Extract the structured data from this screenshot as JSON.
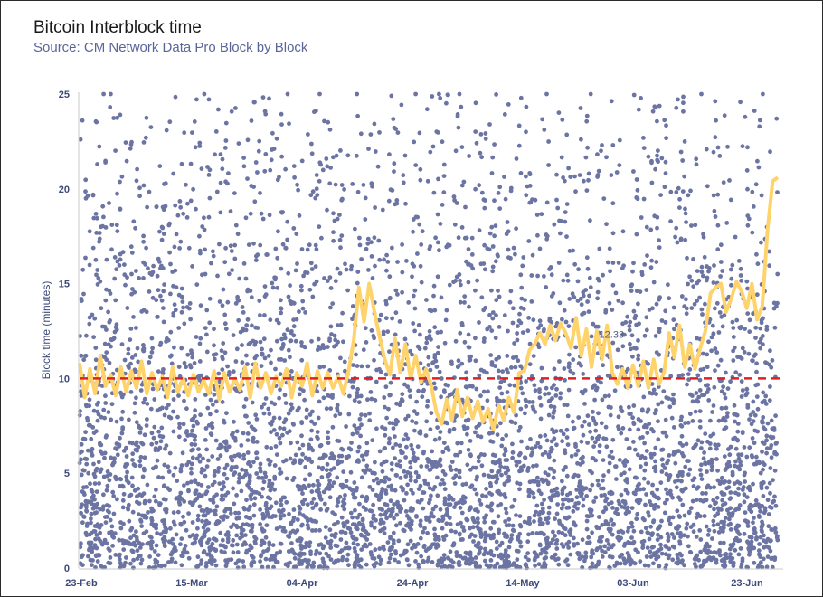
{
  "chart_data": {
    "type": "scatter",
    "title": "Bitcoin Interblock time",
    "subtitle": "Source:  CM Network Data Pro Block by Block",
    "xlabel": "",
    "ylabel": "Block time (minutes)",
    "ylim": [
      0,
      25
    ],
    "yticks": [
      0,
      5,
      10,
      15,
      20,
      25
    ],
    "xticks": [
      "23-Feb",
      "15-Mar",
      "04-Apr",
      "24-Apr",
      "14-May",
      "03-Jun",
      "23-Jun"
    ],
    "x_range_days": [
      0,
      125
    ],
    "grid": false,
    "reference_line": {
      "value": 10,
      "style": "dashed",
      "color": "#e02020"
    },
    "annotation": {
      "text": "12.33",
      "day": 94,
      "value": 12.33
    },
    "colors": {
      "scatter": "#6b74a2",
      "rolling_mean": "#ffd36b",
      "reference": "#e02020"
    },
    "series": [
      {
        "type": "scatter",
        "description_points": "individual block intervals (minutes), ~5,300 points between 0 and 25"
      },
      {
        "type": "line",
        "points": [
          [
            0,
            10.8
          ],
          [
            1,
            9.0
          ],
          [
            2,
            10.5
          ],
          [
            3,
            9.2
          ],
          [
            4,
            11.2
          ],
          [
            5,
            9.6
          ],
          [
            6,
            10.2
          ],
          [
            7,
            9.1
          ],
          [
            8,
            10.6
          ],
          [
            9,
            9.3
          ],
          [
            10,
            10.4
          ],
          [
            11,
            9.5
          ],
          [
            12,
            10.9
          ],
          [
            13,
            9.2
          ],
          [
            14,
            10.3
          ],
          [
            15,
            9.4
          ],
          [
            16,
            10.1
          ],
          [
            17,
            9.0
          ],
          [
            18,
            10.6
          ],
          [
            19,
            9.3
          ],
          [
            20,
            10.0
          ],
          [
            21,
            9.1
          ],
          [
            22,
            10.2
          ],
          [
            23,
            9.3
          ],
          [
            24,
            9.9
          ],
          [
            25,
            9.2
          ],
          [
            26,
            10.4
          ],
          [
            27,
            8.9
          ],
          [
            28,
            10.3
          ],
          [
            29,
            9.3
          ],
          [
            30,
            10.0
          ],
          [
            31,
            9.4
          ],
          [
            32,
            10.6
          ],
          [
            33,
            9.0
          ],
          [
            34,
            10.8
          ],
          [
            35,
            9.5
          ],
          [
            36,
            10.3
          ],
          [
            37,
            9.2
          ],
          [
            38,
            10.1
          ],
          [
            39,
            9.6
          ],
          [
            40,
            10.5
          ],
          [
            41,
            9.0
          ],
          [
            42,
            10.3
          ],
          [
            43,
            9.6
          ],
          [
            44,
            10.8
          ],
          [
            45,
            9.1
          ],
          [
            46,
            10.4
          ],
          [
            47,
            9.5
          ],
          [
            48,
            10.3
          ],
          [
            49,
            9.5
          ],
          [
            50,
            10.1
          ],
          [
            51,
            9.2
          ],
          [
            52,
            10.4
          ],
          [
            53,
            12.0
          ],
          [
            54,
            14.8
          ],
          [
            55,
            13.0
          ],
          [
            56,
            15.0
          ],
          [
            57,
            13.5
          ],
          [
            58,
            12.2
          ],
          [
            59,
            11.0
          ],
          [
            60,
            10.2
          ],
          [
            61,
            12.1
          ],
          [
            62,
            10.3
          ],
          [
            63,
            11.8
          ],
          [
            64,
            10.0
          ],
          [
            65,
            11.2
          ],
          [
            66,
            9.8
          ],
          [
            67,
            10.5
          ],
          [
            68,
            9.6
          ],
          [
            69,
            8.2
          ],
          [
            70,
            7.6
          ],
          [
            71,
            8.9
          ],
          [
            72,
            7.8
          ],
          [
            73,
            9.4
          ],
          [
            74,
            8.0
          ],
          [
            75,
            9.0
          ],
          [
            76,
            7.9
          ],
          [
            77,
            8.8
          ],
          [
            78,
            7.7
          ],
          [
            79,
            8.4
          ],
          [
            80,
            7.3
          ],
          [
            81,
            8.6
          ],
          [
            82,
            7.8
          ],
          [
            83,
            9.0
          ],
          [
            84,
            8.2
          ],
          [
            85,
            10.3
          ],
          [
            86,
            10.4
          ],
          [
            87,
            11.5
          ],
          [
            88,
            11.8
          ],
          [
            89,
            12.4
          ],
          [
            90,
            11.8
          ],
          [
            91,
            12.8
          ],
          [
            92,
            12.0
          ],
          [
            93,
            12.9
          ],
          [
            94,
            12.4
          ],
          [
            95,
            11.6
          ],
          [
            96,
            13.2
          ],
          [
            97,
            11.2
          ],
          [
            98,
            12.6
          ],
          [
            99,
            10.6
          ],
          [
            100,
            12.5
          ],
          [
            101,
            11.0
          ],
          [
            102,
            12.8
          ],
          [
            103,
            10.3
          ],
          [
            104,
            9.7
          ],
          [
            105,
            10.5
          ],
          [
            106,
            9.5
          ],
          [
            107,
            10.7
          ],
          [
            108,
            9.6
          ],
          [
            109,
            10.9
          ],
          [
            110,
            9.5
          ],
          [
            111,
            11.0
          ],
          [
            112,
            9.7
          ],
          [
            113,
            10.3
          ],
          [
            114,
            12.4
          ],
          [
            115,
            11.1
          ],
          [
            116,
            12.8
          ],
          [
            117,
            10.6
          ],
          [
            118,
            11.8
          ],
          [
            119,
            10.5
          ],
          [
            120,
            11.6
          ],
          [
            121,
            12.5
          ],
          [
            122,
            14.5
          ],
          [
            123,
            14.8
          ],
          [
            124,
            15.0
          ],
          [
            125,
            13.5
          ],
          [
            126,
            14.2
          ],
          [
            127,
            15.1
          ],
          [
            128,
            14.6
          ],
          [
            129,
            13.7
          ],
          [
            130,
            15.0
          ],
          [
            131,
            13.1
          ],
          [
            132,
            13.8
          ],
          [
            133,
            17.8
          ],
          [
            134,
            20.4
          ],
          [
            135,
            20.6
          ]
        ]
      }
    ]
  }
}
